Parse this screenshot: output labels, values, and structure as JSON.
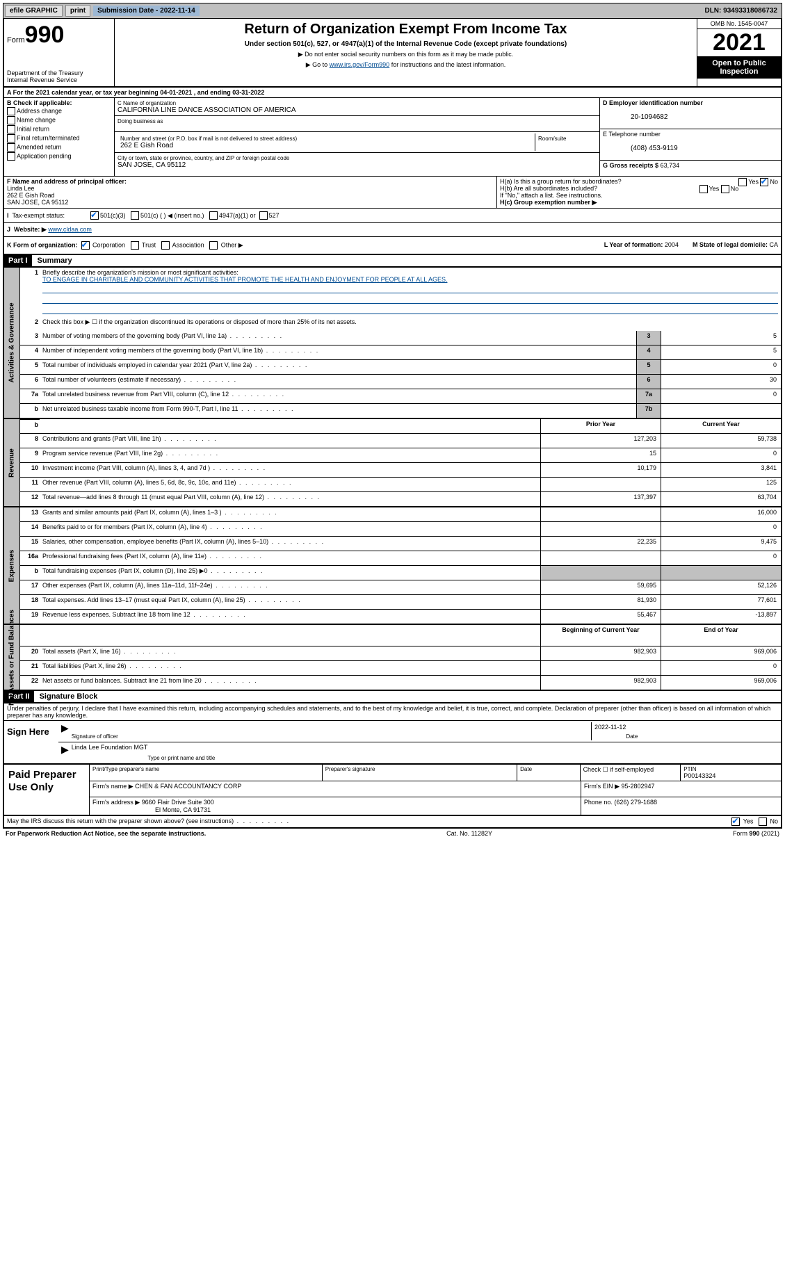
{
  "topbar": {
    "efile": "efile GRAPHIC",
    "print": "print",
    "sub_date_label": "Submission Date - 2022-11-14",
    "dln": "DLN: 93493318086732"
  },
  "header": {
    "form_prefix": "Form",
    "form_number": "990",
    "dept": "Department of the Treasury",
    "irs": "Internal Revenue Service",
    "title": "Return of Organization Exempt From Income Tax",
    "sub": "Under section 501(c), 527, or 4947(a)(1) of the Internal Revenue Code (except private foundations)",
    "note1": "▶ Do not enter social security numbers on this form as it may be made public.",
    "note2_pre": "▶ Go to ",
    "note2_link": "www.irs.gov/Form990",
    "note2_post": " for instructions and the latest information.",
    "omb": "OMB No. 1545-0047",
    "year": "2021",
    "open": "Open to Public Inspection"
  },
  "section_a": {
    "a_line": "A For the 2021 calendar year, or tax year beginning 04-01-2021   , and ending 03-31-2022",
    "b_label": "B Check if applicable:",
    "checks": [
      "Address change",
      "Name change",
      "Initial return",
      "Final return/terminated",
      "Amended return",
      "Application pending"
    ],
    "c_label": "C Name of organization",
    "c_name": "CALIFORNIA LINE DANCE ASSOCIATION OF AMERICA",
    "dba_label": "Doing business as",
    "addr_label": "Number and street (or P.O. box if mail is not delivered to street address)",
    "room_label": "Room/suite",
    "addr": "262 E Gish Road",
    "city_label": "City or town, state or province, country, and ZIP or foreign postal code",
    "city": "SAN JOSE, CA  95112",
    "d_label": "D Employer identification number",
    "d_val": "20-1094682",
    "e_label": "E Telephone number",
    "e_val": "(408) 453-9119",
    "g_label": "G Gross receipts $",
    "g_val": "63,734",
    "f_label": "F  Name and address of principal officer:",
    "f_name": "Linda Lee",
    "f_addr1": "262 E Gish Road",
    "f_addr2": "SAN JOSE, CA  95112",
    "ha_label": "H(a)  Is this a group return for subordinates?",
    "ha_yes": "Yes",
    "ha_no": "No",
    "hb_label": "H(b)  Are all subordinates included?",
    "hb_note": "If \"No,\" attach a list. See instructions.",
    "hc_label": "H(c)  Group exemption number ▶",
    "i_label": "Tax-exempt status:",
    "i_501c3": "501(c)(3)",
    "i_501c": "501(c) (  ) ◀ (insert no.)",
    "i_4947": "4947(a)(1) or",
    "i_527": "527",
    "j_label": "Website: ▶",
    "j_val": "www.cldaa.com",
    "k_label": "K Form of organization:",
    "k_corp": "Corporation",
    "k_trust": "Trust",
    "k_assoc": "Association",
    "k_other": "Other ▶",
    "l_label": "L Year of formation:",
    "l_val": "2004",
    "m_label": "M State of legal domicile:",
    "m_val": "CA"
  },
  "part1": {
    "hdr": "Part I",
    "title": "Summary",
    "l1_label": "Briefly describe the organization's mission or most significant activities:",
    "l1_text": "TO ENGAGE IN CHARITABLE AND COMMUNITY ACTIVITIES THAT PROMOTE THE HEALTH AND ENJOYMENT FOR PEOPLE AT ALL AGES.",
    "l2": "Check this box ▶ ☐  if the organization discontinued its operations or disposed of more than 25% of its net assets.",
    "rows_gov": [
      {
        "num": "3",
        "text": "Number of voting members of the governing body (Part VI, line 1a)",
        "box": "3",
        "val": "5"
      },
      {
        "num": "4",
        "text": "Number of independent voting members of the governing body (Part VI, line 1b)",
        "box": "4",
        "val": "5"
      },
      {
        "num": "5",
        "text": "Total number of individuals employed in calendar year 2021 (Part V, line 2a)",
        "box": "5",
        "val": "0"
      },
      {
        "num": "6",
        "text": "Total number of volunteers (estimate if necessary)",
        "box": "6",
        "val": "30"
      },
      {
        "num": "7a",
        "text": "Total unrelated business revenue from Part VIII, column (C), line 12",
        "box": "7a",
        "val": "0"
      },
      {
        "num": "b",
        "text": "Net unrelated business taxable income from Form 990-T, Part I, line 11",
        "box": "7b",
        "val": ""
      }
    ],
    "col_prior": "Prior Year",
    "col_current": "Current Year",
    "rows_rev": [
      {
        "num": "8",
        "text": "Contributions and grants (Part VIII, line 1h)",
        "prior": "127,203",
        "curr": "59,738"
      },
      {
        "num": "9",
        "text": "Program service revenue (Part VIII, line 2g)",
        "prior": "15",
        "curr": "0"
      },
      {
        "num": "10",
        "text": "Investment income (Part VIII, column (A), lines 3, 4, and 7d )",
        "prior": "10,179",
        "curr": "3,841"
      },
      {
        "num": "11",
        "text": "Other revenue (Part VIII, column (A), lines 5, 6d, 8c, 9c, 10c, and 11e)",
        "prior": "",
        "curr": "125"
      },
      {
        "num": "12",
        "text": "Total revenue—add lines 8 through 11 (must equal Part VIII, column (A), line 12)",
        "prior": "137,397",
        "curr": "63,704"
      }
    ],
    "rows_exp": [
      {
        "num": "13",
        "text": "Grants and similar amounts paid (Part IX, column (A), lines 1–3 )",
        "prior": "",
        "curr": "16,000"
      },
      {
        "num": "14",
        "text": "Benefits paid to or for members (Part IX, column (A), line 4)",
        "prior": "",
        "curr": "0"
      },
      {
        "num": "15",
        "text": "Salaries, other compensation, employee benefits (Part IX, column (A), lines 5–10)",
        "prior": "22,235",
        "curr": "9,475"
      },
      {
        "num": "16a",
        "text": "Professional fundraising fees (Part IX, column (A), line 11e)",
        "prior": "",
        "curr": "0"
      },
      {
        "num": "b",
        "text": "Total fundraising expenses (Part IX, column (D), line 25) ▶0",
        "prior": "GREY",
        "curr": "GREY"
      },
      {
        "num": "17",
        "text": "Other expenses (Part IX, column (A), lines 11a–11d, 11f–24e)",
        "prior": "59,695",
        "curr": "52,126"
      },
      {
        "num": "18",
        "text": "Total expenses. Add lines 13–17 (must equal Part IX, column (A), line 25)",
        "prior": "81,930",
        "curr": "77,601"
      },
      {
        "num": "19",
        "text": "Revenue less expenses. Subtract line 18 from line 12",
        "prior": "55,467",
        "curr": "-13,897"
      }
    ],
    "col_begin": "Beginning of Current Year",
    "col_end": "End of Year",
    "rows_net": [
      {
        "num": "20",
        "text": "Total assets (Part X, line 16)",
        "prior": "982,903",
        "curr": "969,006"
      },
      {
        "num": "21",
        "text": "Total liabilities (Part X, line 26)",
        "prior": "",
        "curr": "0"
      },
      {
        "num": "22",
        "text": "Net assets or fund balances. Subtract line 21 from line 20",
        "prior": "982,903",
        "curr": "969,006"
      }
    ]
  },
  "sidebars": {
    "gov": "Activities & Governance",
    "rev": "Revenue",
    "exp": "Expenses",
    "net": "Net Assets or Fund Balances"
  },
  "part2": {
    "hdr": "Part II",
    "title": "Signature Block",
    "decl": "Under penalties of perjury, I declare that I have examined this return, including accompanying schedules and statements, and to the best of my knowledge and belief, it is true, correct, and complete. Declaration of preparer (other than officer) is based on all information of which preparer has any knowledge.",
    "sign_here": "Sign Here",
    "sig_officer": "Signature of officer",
    "sig_date_val": "2022-11-12",
    "sig_date": "Date",
    "sig_name": "Linda Lee Foundation MGT",
    "sig_name_label": "Type or print name and title"
  },
  "preparer": {
    "title": "Paid Preparer Use Only",
    "r1_c1": "Print/Type preparer's name",
    "r1_c2": "Preparer's signature",
    "r1_c3": "Date",
    "r1_c4_pre": "Check ☐ if self-employed",
    "r1_c5_label": "PTIN",
    "r1_c5_val": "P00143324",
    "r2_label": "Firm's name    ▶",
    "r2_val": "CHEN & FAN ACCOUNTANCY CORP",
    "r2_ein_label": "Firm's EIN ▶",
    "r2_ein": "95-2802947",
    "r3_label": "Firm's address ▶",
    "r3_val": "9660 Flair Drive Suite 300",
    "r3_city": "El Monte, CA  91731",
    "r3_phone_label": "Phone no.",
    "r3_phone": "(626) 279-1688"
  },
  "discuss": {
    "text": "May the IRS discuss this return with the preparer shown above? (see instructions)",
    "yes": "Yes",
    "no": "No"
  },
  "footer": {
    "left": "For Paperwork Reduction Act Notice, see the separate instructions.",
    "mid": "Cat. No. 11282Y",
    "right": "Form 990 (2021)"
  }
}
